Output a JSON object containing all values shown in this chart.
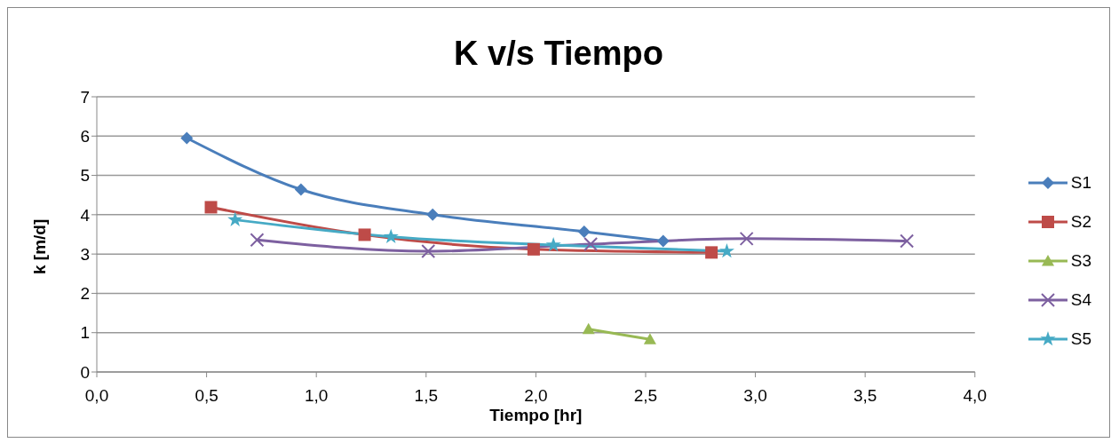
{
  "chart_data": {
    "type": "line",
    "title": "K v/s Tiempo",
    "xlabel": "Tiempo [hr]",
    "ylabel": "k [m/d]",
    "xlim": [
      0,
      4
    ],
    "xticks": [
      {
        "value": 0,
        "label": "0,0"
      },
      {
        "value": 0.5,
        "label": "0,5"
      },
      {
        "value": 1,
        "label": "1,0"
      },
      {
        "value": 1.5,
        "label": "1,5"
      },
      {
        "value": 2,
        "label": "2,0"
      },
      {
        "value": 2.5,
        "label": "2,5"
      },
      {
        "value": 3,
        "label": "3,0"
      },
      {
        "value": 3.5,
        "label": "3,5"
      },
      {
        "value": 4,
        "label": "4,0"
      }
    ],
    "ylim": [
      0,
      7
    ],
    "yticks": [
      0,
      1,
      2,
      3,
      4,
      5,
      6,
      7
    ],
    "grid": "y",
    "legend": "right",
    "series": [
      {
        "name": "S1",
        "color": "#4a7ebb",
        "marker": "diamond",
        "x": [
          0.41,
          0.93,
          1.53,
          2.22,
          2.58
        ],
        "values": [
          5.95,
          4.64,
          4.0,
          3.57,
          3.33
        ]
      },
      {
        "name": "S2",
        "color": "#be4b48",
        "marker": "square",
        "x": [
          0.52,
          1.22,
          1.99,
          2.8
        ],
        "values": [
          4.19,
          3.49,
          3.12,
          3.04
        ]
      },
      {
        "name": "S3",
        "color": "#98b954",
        "marker": "triangle",
        "x": [
          2.24,
          2.52
        ],
        "values": [
          1.09,
          0.83
        ]
      },
      {
        "name": "S4",
        "color": "#7d60a0",
        "marker": "cross",
        "x": [
          0.73,
          1.51,
          2.25,
          2.96,
          3.69
        ],
        "values": [
          3.36,
          3.07,
          3.25,
          3.39,
          3.33
        ]
      },
      {
        "name": "S5",
        "color": "#46aac5",
        "marker": "star",
        "x": [
          0.63,
          1.34,
          2.08,
          2.87
        ],
        "values": [
          3.87,
          3.44,
          3.23,
          3.07
        ]
      }
    ]
  }
}
